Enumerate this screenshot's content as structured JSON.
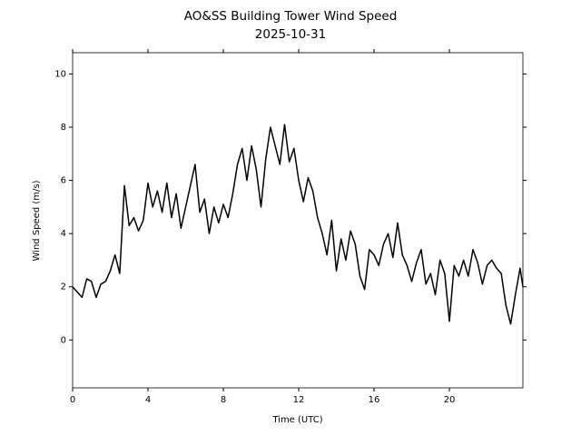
{
  "chart_data": {
    "type": "line",
    "title": "AO&SS Building Tower Wind Speed",
    "subtitle": "2025-10-31",
    "x_label": "Time (UTC)",
    "y_label": "Wind Speed (m/s)",
    "x": [
      0,
      0.25,
      0.5,
      0.75,
      1,
      1.25,
      1.5,
      1.75,
      2,
      2.25,
      2.5,
      2.75,
      3,
      3.25,
      3.5,
      3.75,
      4,
      4.25,
      4.5,
      4.75,
      5,
      5.25,
      5.5,
      5.75,
      6,
      6.25,
      6.5,
      6.75,
      7,
      7.25,
      7.5,
      7.75,
      8,
      8.25,
      8.5,
      8.75,
      9,
      9.25,
      9.5,
      9.75,
      10,
      10.25,
      10.5,
      10.75,
      11,
      11.25,
      11.5,
      11.75,
      12,
      12.25,
      12.5,
      12.75,
      13,
      13.25,
      13.5,
      13.75,
      14,
      14.25,
      14.5,
      14.75,
      15,
      15.25,
      15.5,
      15.75,
      16,
      16.25,
      16.5,
      16.75,
      17,
      17.25,
      17.5,
      17.75,
      18,
      18.25,
      18.5,
      18.75,
      19,
      19.25,
      19.5,
      19.75,
      20,
      20.25,
      20.5,
      20.75,
      21,
      21.25,
      21.5,
      21.75,
      22,
      22.25,
      22.5,
      22.75,
      23,
      23.25,
      23.5,
      23.75,
      23.9
    ],
    "series": [
      {
        "name": "Wind Speed",
        "color": "#000000",
        "values": [
          2.0,
          1.8,
          1.6,
          2.3,
          2.2,
          1.6,
          2.1,
          2.2,
          2.6,
          3.2,
          2.5,
          5.8,
          4.3,
          4.6,
          4.1,
          4.5,
          5.9,
          5.0,
          5.6,
          4.8,
          5.9,
          4.6,
          5.5,
          4.2,
          5.0,
          5.8,
          6.6,
          4.8,
          5.3,
          4.0,
          5.0,
          4.4,
          5.1,
          4.6,
          5.5,
          6.6,
          7.2,
          6.0,
          7.3,
          6.4,
          5.0,
          6.8,
          8.0,
          7.3,
          6.6,
          8.1,
          6.7,
          7.2,
          6.0,
          5.2,
          6.1,
          5.6,
          4.6,
          4.0,
          3.2,
          4.5,
          2.6,
          3.8,
          3.0,
          4.1,
          3.6,
          2.4,
          1.9,
          3.4,
          3.2,
          2.8,
          3.6,
          4.0,
          3.1,
          4.4,
          3.2,
          2.8,
          2.2,
          2.9,
          3.4,
          2.1,
          2.5,
          1.7,
          3.0,
          2.5,
          0.7,
          2.8,
          2.4,
          3.0,
          2.4,
          3.4,
          2.9,
          2.1,
          2.8,
          3.0,
          2.7,
          2.5,
          1.3,
          0.6,
          1.7,
          2.7,
          2.0
        ]
      }
    ],
    "xlim": [
      0,
      23.9
    ],
    "ylim": [
      -1.8,
      10.8
    ],
    "xticks": [
      0,
      4,
      8,
      12,
      16,
      20
    ],
    "yticks": [
      0,
      2,
      4,
      6,
      8,
      10
    ],
    "grid": false
  }
}
